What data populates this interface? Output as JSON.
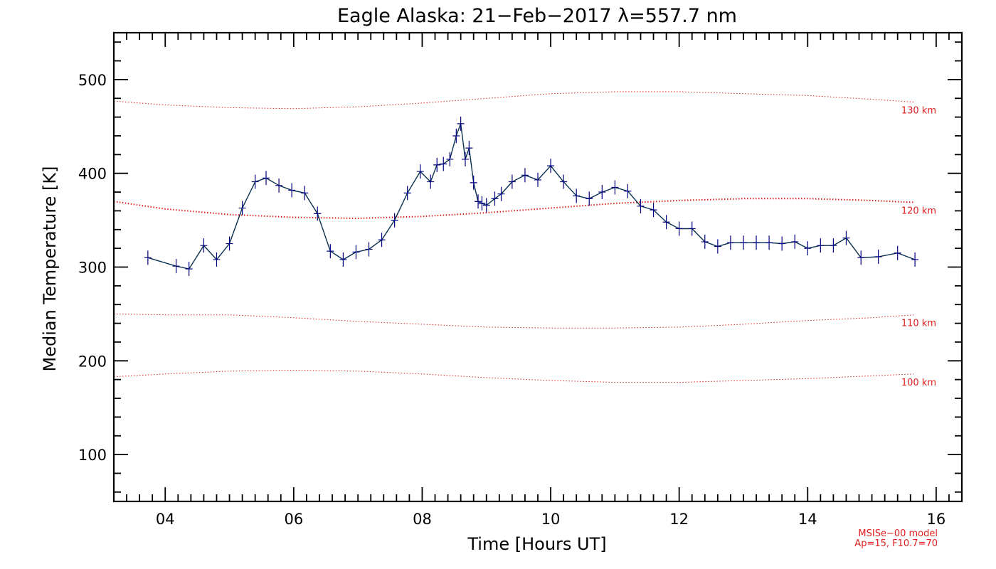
{
  "chart_data": {
    "type": "line",
    "title": "Eagle Alaska: 21−Feb−2017 λ=557.7 nm",
    "xlabel": "Time [Hours UT]",
    "ylabel": "Median Temperature [K]",
    "xlim": [
      3.2,
      16.4
    ],
    "ylim": [
      50,
      550
    ],
    "x_ticks": [
      4,
      6,
      8,
      10,
      12,
      14,
      16
    ],
    "x_tick_labels": [
      "04",
      "06",
      "08",
      "10",
      "12",
      "14",
      "16"
    ],
    "y_ticks": [
      100,
      200,
      300,
      400,
      500
    ],
    "y_tick_labels": [
      "100",
      "200",
      "300",
      "400",
      "500"
    ],
    "grid": false,
    "colors": {
      "series": "#0a3050",
      "marker": "#000080",
      "model": "#e02020",
      "axis": "#000000"
    },
    "series": [
      {
        "x": [
          3.73,
          4.17,
          4.37,
          4.6,
          4.8,
          5.0,
          5.2,
          5.4,
          5.57,
          5.77,
          5.97,
          6.17,
          6.37,
          6.57,
          6.77,
          6.97,
          7.17,
          7.37,
          7.57,
          7.77,
          7.97,
          8.13,
          8.23,
          8.33,
          8.43,
          8.53,
          8.6,
          8.67,
          8.73,
          8.8,
          8.87,
          8.93,
          9.0,
          9.13,
          9.23,
          9.4,
          9.6,
          9.8,
          10.0,
          10.2,
          10.4,
          10.6,
          10.8,
          11.0,
          11.2,
          11.4,
          11.6,
          11.8,
          12.0,
          12.2,
          12.4,
          12.6,
          12.8,
          13.0,
          13.2,
          13.4,
          13.6,
          13.8,
          14.0,
          14.2,
          14.4,
          14.6,
          14.83,
          15.1,
          15.4,
          15.67
        ],
        "y": [
          310,
          301,
          298,
          323,
          308,
          325,
          363,
          391,
          395,
          387,
          382,
          379,
          357,
          317,
          308,
          316,
          319,
          329,
          350,
          379,
          402,
          391,
          409,
          410,
          415,
          440,
          453,
          415,
          427,
          390,
          370,
          368,
          366,
          373,
          378,
          391,
          398,
          393,
          408,
          391,
          376,
          373,
          380,
          385,
          381,
          365,
          361,
          348,
          341,
          341,
          327,
          322,
          326,
          326,
          326,
          326,
          325,
          327,
          320,
          323,
          323,
          331,
          310,
          311,
          315,
          308
        ]
      }
    ],
    "model_curves": [
      {
        "label": "130 km",
        "x": [
          3.2,
          4,
          5,
          6,
          7,
          8,
          9,
          10,
          11,
          12,
          13,
          14,
          15,
          15.65
        ],
        "y": [
          477,
          473,
          470,
          469,
          471,
          475,
          480,
          485,
          487,
          487,
          485,
          483,
          479,
          476
        ]
      },
      {
        "label": "120 km",
        "x": [
          3.2,
          4,
          5,
          6,
          7,
          8,
          9,
          10,
          11,
          12,
          13,
          14,
          15,
          15.65
        ],
        "y": [
          370,
          362,
          356,
          353,
          352,
          354,
          358,
          363,
          368,
          371,
          373,
          373,
          371,
          369
        ]
      },
      {
        "label": "110 km",
        "x": [
          3.2,
          4,
          5,
          6,
          7,
          8,
          9,
          10,
          11,
          12,
          13,
          14,
          15,
          15.65
        ],
        "y": [
          250,
          249,
          249,
          246,
          242,
          239,
          236,
          235,
          235,
          236,
          239,
          243,
          246,
          249
        ]
      },
      {
        "label": "100 km",
        "x": [
          3.2,
          4,
          5,
          6,
          7,
          8,
          9,
          10,
          11,
          12,
          13,
          14,
          15,
          15.65
        ],
        "y": [
          183,
          186,
          189,
          190,
          189,
          186,
          182,
          179,
          177,
          177,
          179,
          181,
          184,
          186
        ]
      }
    ],
    "annotations": [
      "MSISe−00 model",
      "Ap=15, F10.7=70"
    ]
  }
}
